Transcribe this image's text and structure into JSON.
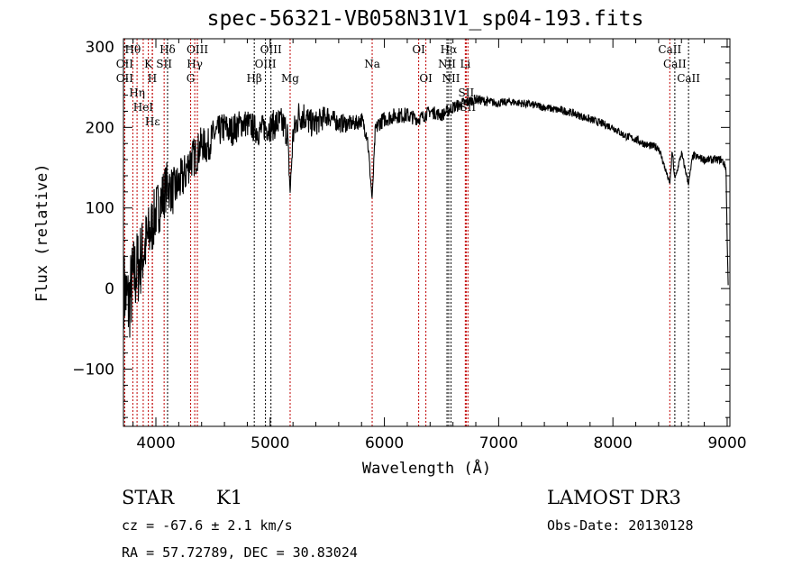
{
  "chart_data": {
    "type": "line",
    "title": "spec-56321-VB058N31V1_sp04-193.fits",
    "xlabel": "Wavelength (Å)",
    "ylabel": "Flux (relative)",
    "xlim": [
      3716,
      9024
    ],
    "ylim": [
      -171,
      310
    ],
    "xticks": [
      4000,
      5000,
      6000,
      7000,
      8000,
      9000
    ],
    "yticks": [
      -100,
      0,
      100,
      200,
      300
    ],
    "grid": false,
    "series": [
      {
        "name": "spectrum",
        "color": "#000000",
        "x": [
          3720,
          3760,
          3800,
          3850,
          3900,
          3950,
          4000,
          4050,
          4100,
          4150,
          4200,
          4250,
          4300,
          4350,
          4400,
          4450,
          4500,
          4550,
          4600,
          4650,
          4700,
          4750,
          4800,
          4850,
          4900,
          4950,
          5000,
          5050,
          5100,
          5150,
          5175,
          5200,
          5250,
          5300,
          5350,
          5400,
          5450,
          5500,
          5550,
          5600,
          5650,
          5700,
          5750,
          5800,
          5850,
          5893,
          5920,
          5950,
          6000,
          6100,
          6200,
          6300,
          6400,
          6500,
          6600,
          6700,
          6800,
          6900,
          7000,
          7100,
          7200,
          7300,
          7400,
          7500,
          7600,
          7700,
          7800,
          7900,
          8000,
          8100,
          8200,
          8300,
          8400,
          8498,
          8520,
          8542,
          8600,
          8662,
          8700,
          8800,
          8900,
          8950,
          8990,
          9000,
          9010
        ],
        "y": [
          0,
          -20,
          10,
          30,
          50,
          70,
          95,
          110,
          130,
          120,
          130,
          140,
          160,
          165,
          180,
          175,
          190,
          195,
          200,
          195,
          200,
          205,
          205,
          200,
          195,
          200,
          200,
          205,
          205,
          195,
          120,
          190,
          215,
          215,
          205,
          205,
          210,
          215,
          210,
          205,
          205,
          205,
          205,
          210,
          190,
          110,
          195,
          205,
          210,
          215,
          215,
          210,
          220,
          215,
          225,
          230,
          235,
          232,
          230,
          232,
          230,
          228,
          225,
          222,
          220,
          215,
          210,
          205,
          200,
          190,
          185,
          178,
          175,
          130,
          170,
          135,
          168,
          130,
          165,
          160,
          160,
          160,
          150,
          60,
          0
        ],
        "noise": [
          50,
          55,
          55,
          50,
          45,
          40,
          35,
          35,
          30,
          30,
          28,
          28,
          25,
          25,
          22,
          22,
          20,
          20,
          20,
          20,
          20,
          18,
          18,
          18,
          18,
          18,
          18,
          20,
          20,
          20,
          5,
          20,
          20,
          20,
          18,
          16,
          15,
          14,
          12,
          12,
          12,
          10,
          10,
          10,
          10,
          5,
          10,
          10,
          10,
          10,
          10,
          8,
          8,
          8,
          8,
          8,
          6,
          6,
          5,
          5,
          5,
          5,
          5,
          5,
          5,
          5,
          5,
          5,
          5,
          5,
          5,
          5,
          5,
          3,
          5,
          3,
          5,
          3,
          5,
          5,
          5,
          5,
          5,
          3,
          2
        ]
      }
    ],
    "lines": [
      {
        "w": 3727,
        "label": "OII",
        "row": 1,
        "color": "#c00000"
      },
      {
        "w": 3727,
        "label": "OII",
        "row": 2,
        "color": "#c00000"
      },
      {
        "w": 3798,
        "label": "Hθ",
        "row": 0,
        "color": "#c00000"
      },
      {
        "w": 3835,
        "label": "Hη",
        "row": 2,
        "color": "#c00000"
      },
      {
        "w": 3889,
        "label": "HeI",
        "row": 1,
        "color": "#c00000"
      },
      {
        "w": 3934,
        "label": "K",
        "row": 0,
        "color": "#c00000"
      },
      {
        "w": 3968,
        "label": "H",
        "row": 2,
        "color": "#c00000"
      },
      {
        "w": 3970,
        "label": "Hε",
        "row": 2,
        "color": "#c00000"
      },
      {
        "w": 4072,
        "label": "SII",
        "row": 1,
        "color": "#c00000"
      },
      {
        "w": 4102,
        "label": "Hδ",
        "row": 0,
        "color": "#000000"
      },
      {
        "w": 4304,
        "label": "G",
        "row": 2,
        "color": "#c00000"
      },
      {
        "w": 4340,
        "label": "Hγ",
        "row": 1,
        "color": "#c00000"
      },
      {
        "w": 4363,
        "label": "OIII",
        "row": 0,
        "color": "#c00000"
      },
      {
        "w": 4861,
        "label": "Hβ",
        "row": 2,
        "color": "#000000"
      },
      {
        "w": 4959,
        "label": "OIII",
        "row": 1,
        "color": "#000000"
      },
      {
        "w": 5007,
        "label": "OIII",
        "row": 0,
        "color": "#000000"
      },
      {
        "w": 5175,
        "label": "Mg",
        "row": 2,
        "color": "#c00000"
      },
      {
        "w": 5893,
        "label": "Na",
        "row": 1,
        "color": "#c00000"
      },
      {
        "w": 6300,
        "label": "OI",
        "row": 0,
        "color": "#c00000"
      },
      {
        "w": 6363,
        "label": "OI",
        "row": 2,
        "color": "#c00000"
      },
      {
        "w": 6548,
        "label": "NII",
        "row": 1,
        "color": "#000000"
      },
      {
        "w": 6563,
        "label": "Hα",
        "row": 0,
        "color": "#000000"
      },
      {
        "w": 6583,
        "label": "NII",
        "row": 2,
        "color": "#000000"
      },
      {
        "w": 6708,
        "label": "Li",
        "row": 1,
        "color": "#c00000"
      },
      {
        "w": 6716,
        "label": "SII",
        "row": 0,
        "color": "#c00000"
      },
      {
        "w": 6731,
        "label": "SII",
        "row": 2,
        "color": "#c00000"
      },
      {
        "w": 8498,
        "label": "CaII",
        "row": 0,
        "color": "#c00000"
      },
      {
        "w": 8542,
        "label": "CaII",
        "row": 1,
        "color": "#000000"
      },
      {
        "w": 8662,
        "label": "CaII",
        "row": 2,
        "color": "#000000"
      }
    ]
  },
  "info": {
    "class": "STAR",
    "subclass": "K1",
    "survey": "LAMOST DR3",
    "cz": "cz = -67.6 ± 2.1 km/s",
    "obs_date": "Obs-Date: 20130128",
    "coords": "RA =  57.72789, DEC =  30.83024"
  }
}
